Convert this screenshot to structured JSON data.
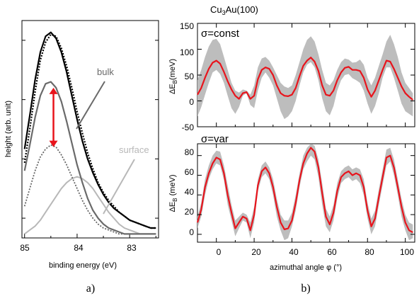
{
  "colors": {
    "black": "#000000",
    "bulk": "#6a6a6a",
    "surface": "#b8b8b8",
    "dotted": "#666666",
    "arrow": "#e8141c",
    "red_line": "#e8141c",
    "band": "#bdbdbd"
  },
  "left_panel": {
    "label": "a)",
    "ylabel": "height (arb. unit)",
    "xlabel": "binding energy (eV)",
    "xticks": [
      "85",
      "84",
      "83"
    ],
    "annotations": {
      "bulk": "bulk",
      "surface": "surface"
    }
  },
  "right_panel": {
    "label": "b)",
    "title": "Cu3Au(100)",
    "title_main": "Cu",
    "title_sub": "3",
    "title_tail": "Au(100)",
    "xlabel": "azimuthal angle φ (°)",
    "xticks": [
      "0",
      "20",
      "40",
      "60",
      "80",
      "100"
    ],
    "top": {
      "annotation": "σ=const",
      "ylabel_main": "ΔE",
      "ylabel_sub": "B",
      "ylabel_tail": "(meV)",
      "yticks": [
        "150",
        "100",
        "50",
        "0",
        "-50"
      ]
    },
    "bottom": {
      "annotation": "σ=var",
      "ylabel_main": "ΔE",
      "ylabel_sub": "B",
      "ylabel_tail": " (meV)",
      "yticks": [
        "80",
        "60",
        "40",
        "20",
        "0"
      ]
    }
  },
  "chart_data": [
    {
      "type": "line",
      "title": "",
      "xlabel": "binding energy (eV)",
      "ylabel": "height (arb. unit)",
      "xlim": [
        85.05,
        82.45
      ],
      "ylim": [
        0,
        1.1
      ],
      "x_reversed": true,
      "series": [
        {
          "name": "",
          "style": "solid-black",
          "x": [
            85.0,
            84.9,
            84.8,
            84.7,
            84.6,
            84.5,
            84.4,
            84.3,
            84.2,
            84.1,
            84.0,
            83.9,
            83.8,
            83.7,
            83.6,
            83.5,
            83.4,
            83.3,
            83.2,
            83.1,
            83.0,
            82.9,
            82.8,
            82.7,
            82.6,
            82.5
          ],
          "y": [
            0.45,
            0.62,
            0.8,
            0.94,
            1.02,
            1.04,
            1.01,
            0.94,
            0.84,
            0.72,
            0.6,
            0.49,
            0.4,
            0.33,
            0.27,
            0.22,
            0.18,
            0.15,
            0.13,
            0.11,
            0.09,
            0.08,
            0.07,
            0.06,
            0.05,
            0.05
          ]
        },
        {
          "name": "",
          "style": "dotted-black",
          "x": [
            85.0,
            84.9,
            84.8,
            84.7,
            84.6,
            84.5,
            84.4,
            84.3,
            84.2,
            84.1,
            84.0,
            83.9,
            83.8,
            83.7,
            83.6,
            83.5,
            83.4,
            83.3,
            83.2,
            83.1,
            83.0,
            82.9,
            82.8,
            82.7,
            82.6,
            82.5
          ],
          "y": [
            0.38,
            0.55,
            0.74,
            0.9,
            0.99,
            1.03,
            1.02,
            0.96,
            0.87,
            0.76,
            0.64,
            0.53,
            0.43,
            0.35,
            0.28,
            0.23,
            0.19,
            0.16,
            0.13,
            0.11,
            0.09,
            0.08,
            0.07,
            0.06,
            0.05,
            0.05
          ]
        },
        {
          "name": "bulk",
          "style": "solid-darkgray",
          "x": [
            85.0,
            84.9,
            84.8,
            84.7,
            84.6,
            84.5,
            84.4,
            84.3,
            84.2,
            84.1,
            84.0,
            83.9,
            83.8,
            83.7,
            83.6,
            83.5,
            83.4,
            83.3,
            83.2,
            83.1,
            83.0,
            82.9,
            82.8,
            82.7,
            82.6,
            82.5
          ],
          "y": [
            0.34,
            0.47,
            0.61,
            0.72,
            0.78,
            0.79,
            0.76,
            0.69,
            0.59,
            0.48,
            0.37,
            0.28,
            0.2,
            0.14,
            0.1,
            0.07,
            0.05,
            0.04,
            0.03,
            0.02,
            0.02,
            0.02,
            0.02,
            0.02,
            0.02,
            0.02
          ]
        },
        {
          "name": "",
          "style": "dotted-gray",
          "x": [
            85.0,
            84.9,
            84.8,
            84.7,
            84.6,
            84.5,
            84.4,
            84.3,
            84.2,
            84.1,
            84.0,
            83.9,
            83.8,
            83.7,
            83.6,
            83.5,
            83.4,
            83.3,
            83.2,
            83.1,
            83.0,
            82.9,
            82.8,
            82.7,
            82.6,
            82.5
          ],
          "y": [
            0.16,
            0.25,
            0.34,
            0.41,
            0.45,
            0.47,
            0.46,
            0.42,
            0.37,
            0.31,
            0.25,
            0.19,
            0.14,
            0.1,
            0.07,
            0.05,
            0.04,
            0.03,
            0.02,
            0.02,
            0.02,
            0.02,
            0.02,
            0.02,
            0.02,
            0.02
          ]
        },
        {
          "name": "surface",
          "style": "solid-lightgray",
          "x": [
            85.0,
            84.9,
            84.8,
            84.7,
            84.6,
            84.5,
            84.4,
            84.3,
            84.2,
            84.1,
            84.0,
            83.9,
            83.8,
            83.7,
            83.6,
            83.5,
            83.4,
            83.3,
            83.2,
            83.1,
            83.0,
            82.9,
            82.8,
            82.7,
            82.6,
            82.5
          ],
          "y": [
            0.02,
            0.04,
            0.06,
            0.09,
            0.13,
            0.17,
            0.21,
            0.25,
            0.28,
            0.3,
            0.31,
            0.3,
            0.28,
            0.25,
            0.21,
            0.17,
            0.13,
            0.1,
            0.07,
            0.05,
            0.04,
            0.03,
            0.02,
            0.02,
            0.02,
            0.02
          ]
        }
      ],
      "arrow": {
        "x": 84.45,
        "y_from": 0.46,
        "y_to": 0.76,
        "double_headed": true
      }
    },
    {
      "type": "line",
      "title": "Cu3Au(100)",
      "xlabel": "",
      "ylabel": "ΔEB(meV)",
      "xlim": [
        -10,
        105
      ],
      "ylim": [
        -50,
        150
      ],
      "annotation": "σ=const",
      "series": [
        {
          "name": "",
          "style": "red-line",
          "x": [
            -10,
            -8,
            -6,
            -4,
            -2,
            0,
            2,
            4,
            6,
            8,
            10,
            12,
            14,
            16,
            18,
            20,
            22,
            24,
            26,
            28,
            30,
            32,
            34,
            36,
            38,
            40,
            42,
            44,
            46,
            48,
            50,
            52,
            54,
            56,
            58,
            60,
            62,
            64,
            66,
            68,
            70,
            72,
            74,
            76,
            78,
            80,
            82,
            84,
            86,
            88,
            90,
            92,
            94,
            96,
            98,
            100,
            102,
            104
          ],
          "y": [
            12,
            25,
            45,
            62,
            74,
            78,
            72,
            56,
            38,
            22,
            10,
            4,
            15,
            17,
            4,
            10,
            42,
            60,
            65,
            62,
            50,
            30,
            15,
            10,
            9,
            12,
            25,
            48,
            68,
            78,
            84,
            76,
            58,
            30,
            12,
            10,
            20,
            40,
            55,
            64,
            66,
            60,
            60,
            58,
            45,
            22,
            8,
            20,
            40,
            60,
            78,
            76,
            62,
            45,
            28,
            15,
            8,
            2
          ],
          "band_low": [
            -30,
            -12,
            12,
            35,
            55,
            60,
            52,
            35,
            10,
            -14,
            -25,
            -12,
            10,
            15,
            -8,
            -14,
            20,
            45,
            55,
            45,
            30,
            5,
            -20,
            -35,
            -30,
            -20,
            0,
            30,
            55,
            70,
            75,
            65,
            40,
            5,
            -20,
            -28,
            -10,
            20,
            40,
            50,
            52,
            44,
            40,
            35,
            20,
            -5,
            -25,
            -10,
            15,
            45,
            65,
            65,
            45,
            20,
            -5,
            -20,
            -25,
            -30
          ],
          "band_high": [
            40,
            60,
            85,
            105,
            118,
            120,
            110,
            85,
            60,
            35,
            20,
            16,
            22,
            20,
            12,
            30,
            65,
            82,
            85,
            78,
            65,
            50,
            35,
            28,
            25,
            30,
            50,
            75,
            100,
            118,
            125,
            115,
            90,
            60,
            35,
            30,
            40,
            60,
            75,
            82,
            80,
            74,
            75,
            80,
            70,
            45,
            30,
            45,
            68,
            90,
            115,
            128,
            110,
            85,
            55,
            35,
            25,
            15
          ]
        }
      ]
    },
    {
      "type": "line",
      "title": "",
      "xlabel": "azimuthal angle φ (°)",
      "ylabel": "ΔEB (meV)",
      "xlim": [
        -10,
        105
      ],
      "ylim": [
        -8,
        92
      ],
      "annotation": "σ=var",
      "series": [
        {
          "name": "",
          "style": "red-line",
          "x": [
            -10,
            -8,
            -6,
            -4,
            -2,
            0,
            2,
            4,
            6,
            8,
            10,
            12,
            14,
            16,
            18,
            20,
            22,
            24,
            26,
            28,
            30,
            32,
            34,
            36,
            38,
            40,
            42,
            44,
            46,
            48,
            50,
            52,
            54,
            56,
            58,
            60,
            62,
            64,
            66,
            68,
            70,
            72,
            74,
            76,
            78,
            80,
            82,
            84,
            86,
            88,
            90,
            92,
            94,
            96,
            98,
            100,
            102,
            104
          ],
          "y": [
            12,
            25,
            48,
            62,
            72,
            78,
            76,
            62,
            40,
            22,
            6,
            12,
            18,
            16,
            4,
            20,
            50,
            64,
            68,
            62,
            48,
            28,
            12,
            5,
            6,
            14,
            32,
            55,
            72,
            82,
            88,
            84,
            68,
            42,
            18,
            10,
            22,
            44,
            58,
            62,
            64,
            60,
            62,
            60,
            48,
            24,
            8,
            16,
            38,
            58,
            78,
            80,
            68,
            48,
            28,
            12,
            4,
            2
          ],
          "band_low": [
            6,
            18,
            40,
            56,
            66,
            72,
            70,
            55,
            30,
            14,
            -2,
            6,
            14,
            12,
            -4,
            12,
            44,
            58,
            62,
            56,
            40,
            18,
            4,
            -6,
            -4,
            8,
            24,
            48,
            66,
            74,
            80,
            76,
            58,
            30,
            8,
            2,
            14,
            36,
            52,
            56,
            58,
            54,
            56,
            52,
            40,
            16,
            0,
            8,
            30,
            50,
            70,
            74,
            60,
            40,
            18,
            4,
            -6,
            -4
          ],
          "band_high": [
            18,
            32,
            56,
            70,
            80,
            85,
            84,
            70,
            50,
            30,
            14,
            18,
            22,
            20,
            12,
            28,
            56,
            70,
            74,
            68,
            56,
            36,
            20,
            14,
            14,
            22,
            40,
            62,
            80,
            88,
            92,
            90,
            76,
            52,
            26,
            18,
            30,
            52,
            64,
            68,
            70,
            66,
            68,
            66,
            56,
            32,
            16,
            24,
            46,
            66,
            86,
            88,
            76,
            56,
            36,
            20,
            12,
            10
          ]
        }
      ]
    }
  ]
}
